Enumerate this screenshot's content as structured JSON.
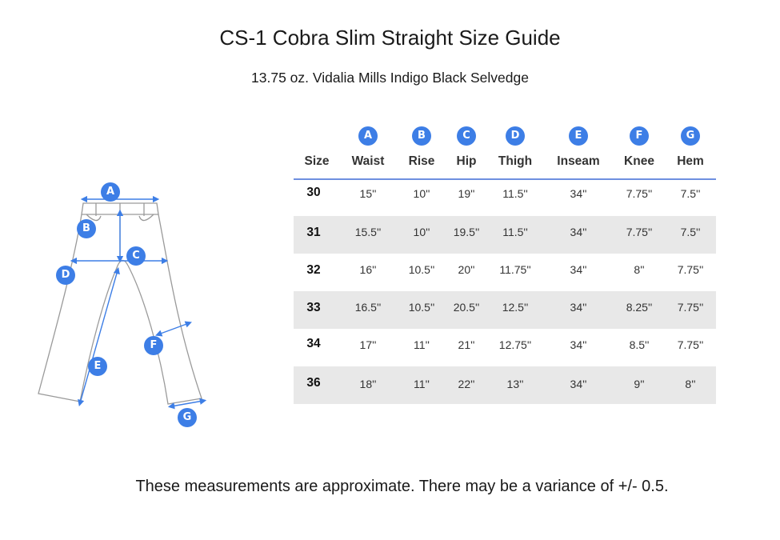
{
  "title": "CS-1 Cobra Slim Straight Size Guide",
  "subtitle": "13.75 oz. Vidalia Mills Indigo Black Selvedge",
  "footer_note": "These measurements are approximate. There may be a variance of +/- 0.5.",
  "accent_color": "#3d7ee6",
  "diagram_labels": [
    "A",
    "B",
    "C",
    "D",
    "E",
    "F",
    "G"
  ],
  "table": {
    "size_header": "Size",
    "columns": [
      {
        "letter": "A",
        "label": "Waist"
      },
      {
        "letter": "B",
        "label": "Rise"
      },
      {
        "letter": "C",
        "label": "Hip"
      },
      {
        "letter": "D",
        "label": "Thigh"
      },
      {
        "letter": "E",
        "label": "Inseam"
      },
      {
        "letter": "F",
        "label": "Knee"
      },
      {
        "letter": "G",
        "label": "Hem"
      }
    ],
    "rows": [
      {
        "size": "30",
        "values": [
          "15''",
          "10''",
          "19''",
          "11.5''",
          "34''",
          "7.75''",
          "7.5''"
        ]
      },
      {
        "size": "31",
        "values": [
          "15.5''",
          "10''",
          "19.5''",
          "11.5''",
          "34''",
          "7.75''",
          "7.5''"
        ]
      },
      {
        "size": "32",
        "values": [
          "16''",
          "10.5''",
          "20''",
          "11.75''",
          "34''",
          "8''",
          "7.75''"
        ]
      },
      {
        "size": "33",
        "values": [
          "16.5''",
          "10.5''",
          "20.5''",
          "12.5''",
          "34''",
          "8.25''",
          "7.75''"
        ]
      },
      {
        "size": "34",
        "values": [
          "17''",
          "11''",
          "21''",
          "12.75''",
          "34''",
          "8.5''",
          "7.75''"
        ]
      },
      {
        "size": "36",
        "values": [
          "18''",
          "11''",
          "22''",
          "13''",
          "34''",
          "9''",
          "8''"
        ]
      }
    ]
  }
}
